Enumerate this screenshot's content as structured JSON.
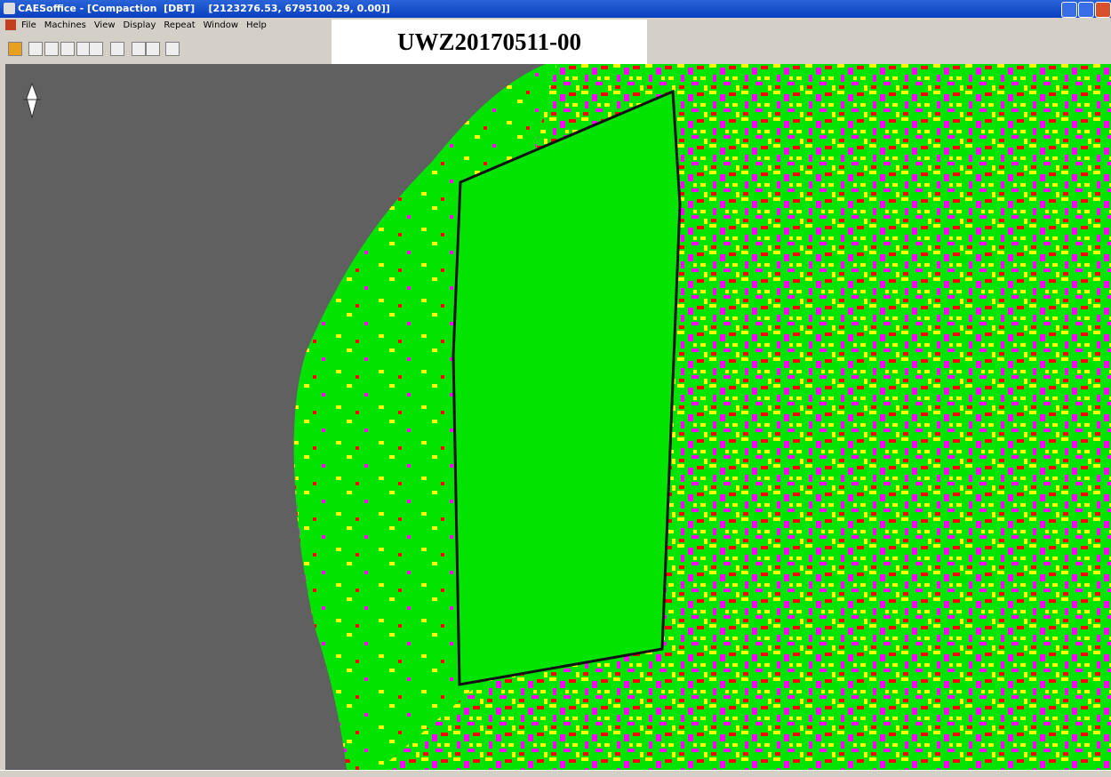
{
  "window": {
    "title": "CAESoffice - [Compaction  [DBT]    [2123276.53, 6795100.29, 0.00]]",
    "menu": [
      "File",
      "Machines",
      "View",
      "Display",
      "Repeat",
      "Window",
      "Help"
    ]
  },
  "map": {
    "label": "UWZ20170511-00"
  }
}
